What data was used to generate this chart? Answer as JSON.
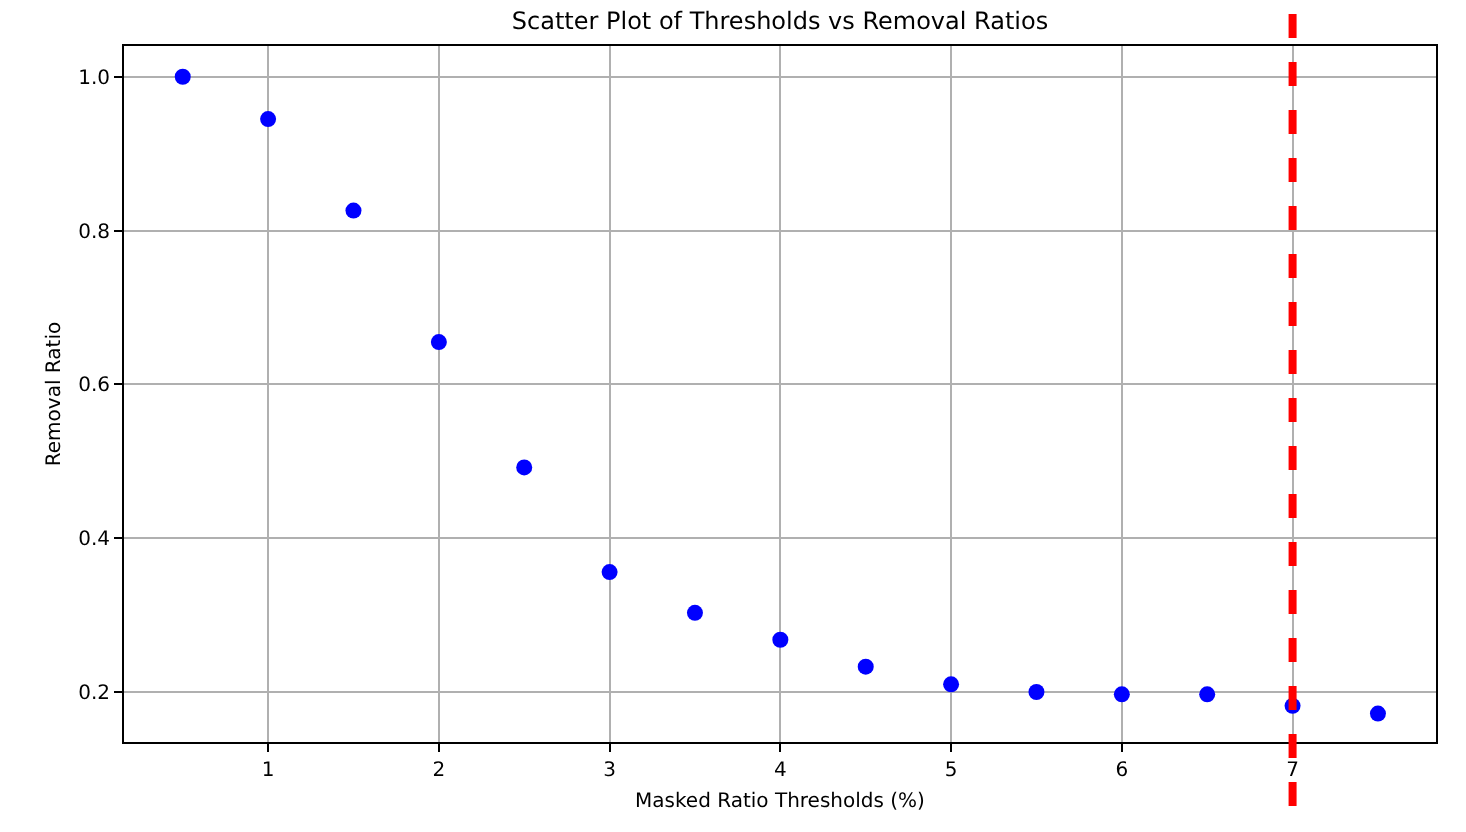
{
  "chart_data": {
    "type": "scatter",
    "title": "Scatter Plot of Thresholds vs Removal Ratios",
    "xlabel": "Masked Ratio Thresholds (%)",
    "ylabel": "Removal Ratio",
    "x": [
      0.5,
      1,
      1.5,
      2,
      2.5,
      3,
      3.5,
      4,
      4.5,
      5,
      5.5,
      6,
      6.5,
      7,
      7.5
    ],
    "series": [
      {
        "color": "#0000ff",
        "values": [
          1.0,
          0.945,
          0.826,
          0.655,
          0.492,
          0.356,
          0.303,
          0.268,
          0.233,
          0.21,
          0.2,
          0.197,
          0.197,
          0.182,
          0.172
        ]
      }
    ],
    "xlim": [
      0.156,
      7.84
    ],
    "ylim": [
      0.135,
      1.04
    ],
    "xticks": [
      1,
      2,
      3,
      4,
      5,
      6,
      7
    ],
    "yticks": [
      0.2,
      0.4,
      0.6,
      0.8,
      {
        "value": 1,
        "label": "1.0"
      }
    ],
    "grid": true,
    "marker": "circle",
    "ref_lines": [
      {
        "axis": "x",
        "value": 7,
        "color": "#ff0000",
        "line_style": "dashed"
      }
    ]
  }
}
